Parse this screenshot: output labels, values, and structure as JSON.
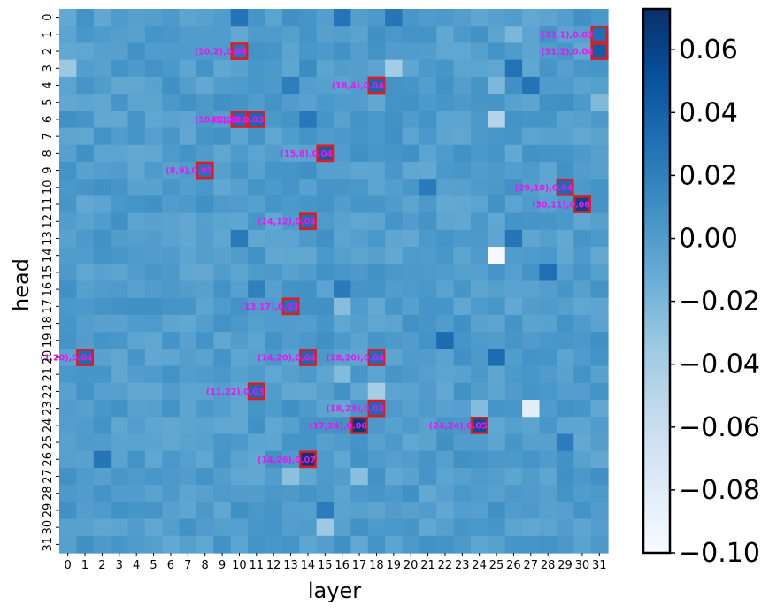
{
  "chart_data": {
    "type": "heatmap",
    "title": "",
    "xlabel": "layer",
    "ylabel": "head",
    "x_ticks": [
      "0",
      "1",
      "2",
      "3",
      "4",
      "5",
      "6",
      "7",
      "8",
      "9",
      "10",
      "11",
      "12",
      "13",
      "14",
      "15",
      "16",
      "17",
      "18",
      "19",
      "20",
      "21",
      "22",
      "23",
      "24",
      "25",
      "26",
      "27",
      "28",
      "29",
      "30",
      "31"
    ],
    "y_ticks": [
      "0",
      "1",
      "2",
      "3",
      "4",
      "5",
      "6",
      "7",
      "8",
      "9",
      "10",
      "11",
      "12",
      "13",
      "14",
      "15",
      "16",
      "17",
      "18",
      "19",
      "20",
      "21",
      "22",
      "23",
      "24",
      "25",
      "26",
      "27",
      "28",
      "29",
      "30",
      "31"
    ],
    "colormap": "Blues",
    "vmin": -0.1,
    "vmax": 0.073,
    "colorbar_ticks": [
      "0.06",
      "0.04",
      "0.02",
      "0.00",
      "−0.02",
      "−0.04",
      "−0.06",
      "−0.08",
      "−0.10"
    ],
    "colorbar_tick_values": [
      0.06,
      0.04,
      0.02,
      0.0,
      -0.02,
      -0.04,
      -0.06,
      -0.08,
      -0.1
    ],
    "background_value": 0.0,
    "nonzero_cells": [
      {
        "layer": 10,
        "head": 0,
        "value": 0.02
      },
      {
        "layer": 16,
        "head": 0,
        "value": 0.02
      },
      {
        "layer": 19,
        "head": 0,
        "value": 0.03
      },
      {
        "layer": 26,
        "head": 1,
        "value": -0.025
      },
      {
        "layer": 4,
        "head": 3,
        "value": 0.0
      },
      {
        "layer": 0,
        "head": 3,
        "value": -0.03
      },
      {
        "layer": 14,
        "head": 3,
        "value": 0.02
      },
      {
        "layer": 19,
        "head": 3,
        "value": -0.03
      },
      {
        "layer": 26,
        "head": 3,
        "value": 0.02
      },
      {
        "layer": 13,
        "head": 4,
        "value": 0.03
      },
      {
        "layer": 27,
        "head": 4,
        "value": 0.03
      },
      {
        "layer": 25,
        "head": 4,
        "value": -0.02
      },
      {
        "layer": 31,
        "head": 5,
        "value": -0.03
      },
      {
        "layer": 14,
        "head": 6,
        "value": 0.025
      },
      {
        "layer": 25,
        "head": 6,
        "value": -0.04
      },
      {
        "layer": 21,
        "head": 10,
        "value": 0.02
      },
      {
        "layer": 10,
        "head": 13,
        "value": 0.03
      },
      {
        "layer": 26,
        "head": 13,
        "value": 0.03
      },
      {
        "layer": 25,
        "head": 14,
        "value": -0.1
      },
      {
        "layer": 28,
        "head": 15,
        "value": 0.03
      },
      {
        "layer": 11,
        "head": 16,
        "value": 0.025
      },
      {
        "layer": 16,
        "head": 16,
        "value": 0.03
      },
      {
        "layer": 16,
        "head": 17,
        "value": -0.025
      },
      {
        "layer": 22,
        "head": 19,
        "value": 0.025
      },
      {
        "layer": 25,
        "head": 20,
        "value": 0.025
      },
      {
        "layer": 16,
        "head": 21,
        "value": -0.03
      },
      {
        "layer": 18,
        "head": 22,
        "value": -0.045
      },
      {
        "layer": 27,
        "head": 23,
        "value": -0.08
      },
      {
        "layer": 24,
        "head": 23,
        "value": -0.02
      },
      {
        "layer": 29,
        "head": 25,
        "value": 0.03
      },
      {
        "layer": 2,
        "head": 26,
        "value": 0.025
      },
      {
        "layer": 17,
        "head": 27,
        "value": -0.035
      },
      {
        "layer": 15,
        "head": 29,
        "value": 0.03
      },
      {
        "layer": 15,
        "head": 30,
        "value": -0.03
      },
      {
        "layer": 13,
        "head": 27,
        "value": -0.025
      }
    ],
    "highlighted_cells": [
      {
        "layer": 31,
        "head": 1,
        "value": 0.03,
        "label": "(31,1),0.03"
      },
      {
        "layer": 10,
        "head": 2,
        "value": 0.03,
        "label": "(10,2),0.03"
      },
      {
        "layer": 31,
        "head": 2,
        "value": 0.04,
        "label": "(31,2),0.04"
      },
      {
        "layer": 18,
        "head": 4,
        "value": 0.04,
        "label": "(18,4),0.04"
      },
      {
        "layer": 10,
        "head": 6,
        "value": 0.03,
        "label": "(10,6),0.03"
      },
      {
        "layer": 11,
        "head": 6,
        "value": 0.03,
        "label": "(11,6),0.03"
      },
      {
        "layer": 15,
        "head": 8,
        "value": 0.04,
        "label": "(15,8),0.04"
      },
      {
        "layer": 8,
        "head": 9,
        "value": 0.03,
        "label": "(8,9),0.03"
      },
      {
        "layer": 29,
        "head": 10,
        "value": 0.04,
        "label": "(29,10),0.04"
      },
      {
        "layer": 30,
        "head": 11,
        "value": 0.06,
        "label": "(30,11),0.06"
      },
      {
        "layer": 14,
        "head": 12,
        "value": 0.04,
        "label": "(14,12),0.04"
      },
      {
        "layer": 13,
        "head": 17,
        "value": 0.03,
        "label": "(13,17),0.03"
      },
      {
        "layer": 1,
        "head": 20,
        "value": 0.04,
        "label": "(1,20),0.04"
      },
      {
        "layer": 14,
        "head": 20,
        "value": 0.04,
        "label": "(14,20),0.04"
      },
      {
        "layer": 18,
        "head": 20,
        "value": 0.04,
        "label": "(18,20),0.04"
      },
      {
        "layer": 11,
        "head": 22,
        "value": 0.03,
        "label": "(11,22),0.03"
      },
      {
        "layer": 18,
        "head": 23,
        "value": 0.03,
        "label": "(18,23),0.03"
      },
      {
        "layer": 17,
        "head": 24,
        "value": 0.06,
        "label": "(17,24),0.06"
      },
      {
        "layer": 24,
        "head": 24,
        "value": 0.05,
        "label": "(24,24),0.05"
      },
      {
        "layer": 14,
        "head": 26,
        "value": 0.07,
        "label": "(14,26),0.07"
      }
    ],
    "highlight_box_color": "#e6191e",
    "annotation_color": "#e817f0"
  }
}
